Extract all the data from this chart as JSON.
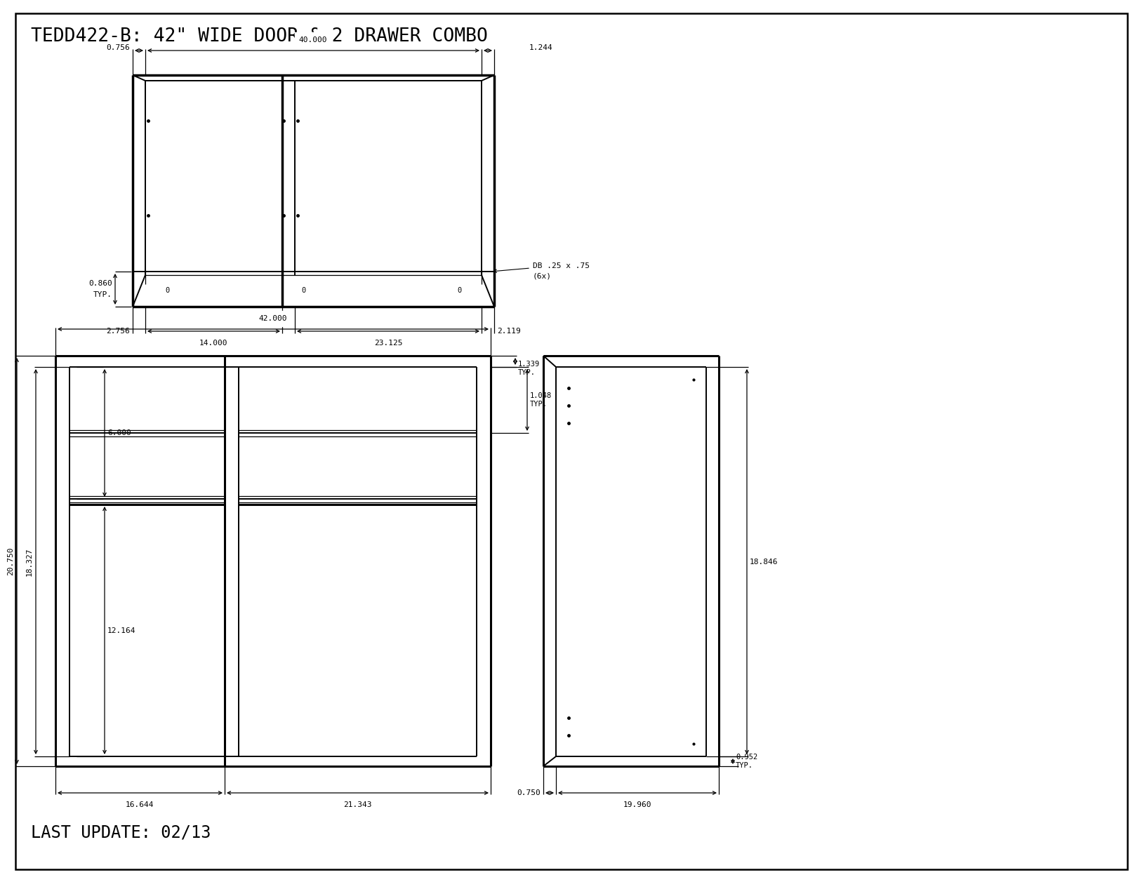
{
  "title": "TEDD422-B: 42\" WIDE DOOR & 2 DRAWER COMBO",
  "last_update": "LAST UPDATE: 02/13",
  "bg_color": "#ffffff",
  "line_color": "#000000",
  "text_color": "#000000",
  "font_name": "monospace",
  "labels": {
    "dim_40": "40.000",
    "dim_0756": "0.756",
    "dim_1244": "1.244",
    "dim_2756": "2.756",
    "dim_14": "14.000",
    "dim_23125": "23.125",
    "dim_2119": "2.119",
    "dim_0860": "0.860\nTYP.",
    "db": "DB .25 x .75\n(6x)",
    "dim_42": "42.000",
    "dim_20750": "20.750",
    "dim_18327": "18.327",
    "dim_6": "6.000",
    "dim_12164": "12.164",
    "dim_16644": "16.644",
    "dim_21343": "21.343",
    "dim_1339": "1.339\nTYP.",
    "dim_1048": "1.048\nTYP.",
    "dim_18846": "18.846",
    "dim_0750": "0.750",
    "dim_19960": "19.960",
    "dim_0952": "0.952\nTYP."
  }
}
